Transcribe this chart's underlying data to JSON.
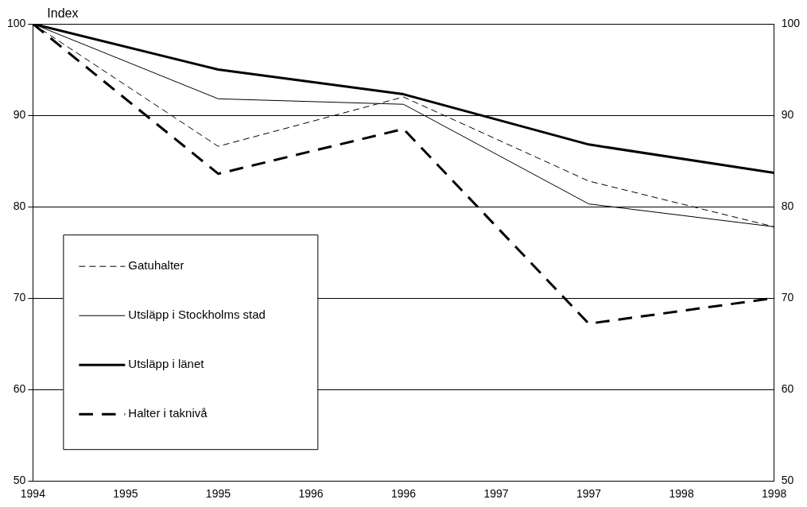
{
  "chart_data": {
    "type": "line",
    "ylabel": "Index",
    "categories": [
      "1994",
      "1995",
      "1995",
      "1996",
      "1996",
      "1997",
      "1997",
      "1998",
      "1998"
    ],
    "series": [
      {
        "name": "Gatuhalter",
        "color": "#000000",
        "line_style": "dashed",
        "values": [
          100,
          null,
          86.6,
          null,
          92,
          null,
          82.8,
          null,
          77.8
        ]
      },
      {
        "name": "Utsläpp i Stockholms stad",
        "color": "#000000",
        "line_style": "solid",
        "values": [
          100,
          null,
          91.8,
          null,
          91.2,
          null,
          80.3,
          null,
          77.8
        ]
      },
      {
        "name": "Utsläpp i länet",
        "color": "#000000",
        "line_style": "solid",
        "values": [
          100,
          null,
          95,
          null,
          92.3,
          null,
          86.8,
          null,
          83.7
        ]
      },
      {
        "name": "Halter i taknivå",
        "color": "#000000",
        "line_style": "dashed",
        "values": [
          100,
          null,
          83.6,
          null,
          88.5,
          null,
          67.2,
          null,
          70
        ]
      }
    ],
    "ylim": [
      50,
      100
    ],
    "yticks": [
      50,
      60,
      70,
      80,
      90,
      100
    ],
    "y2lim": [
      50,
      100
    ],
    "y2ticks": [
      50,
      60,
      70,
      80,
      90,
      100
    ],
    "grid": "y",
    "legend": "bottom left",
    "marker": "none"
  }
}
